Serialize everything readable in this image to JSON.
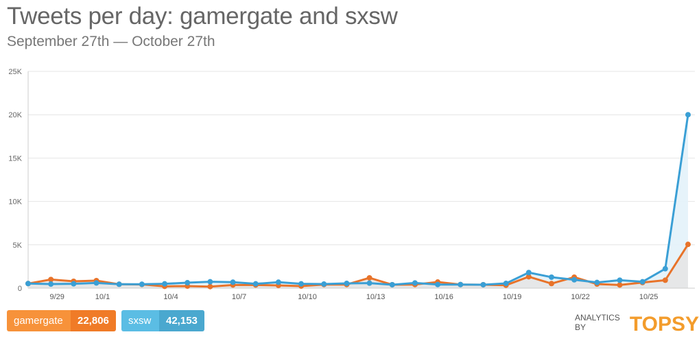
{
  "header": {
    "title": "Tweets per day: gamergate and sxsw",
    "subtitle": "September 27th — October 27th"
  },
  "chart_data": {
    "type": "line",
    "title": "Tweets per day: gamergate and sxsw",
    "subtitle": "September 27th — October 27th",
    "xlabel": "",
    "ylabel": "",
    "ylim": [
      0,
      25000
    ],
    "y_ticks": [
      "0",
      "5K",
      "10K",
      "15K",
      "20K",
      "25K"
    ],
    "y_tick_values": [
      0,
      5000,
      10000,
      15000,
      20000,
      25000
    ],
    "grid": true,
    "legend_placement": "bottom-left",
    "x": [
      "9/28",
      "9/29",
      "9/30",
      "10/1",
      "10/2",
      "10/3",
      "10/4",
      "10/5",
      "10/6",
      "10/7",
      "10/8",
      "10/9",
      "10/10",
      "10/11",
      "10/12",
      "10/13",
      "10/14",
      "10/15",
      "10/16",
      "10/17",
      "10/18",
      "10/19",
      "10/20",
      "10/21",
      "10/22",
      "10/23",
      "10/24",
      "10/25",
      "10/26",
      "10/27"
    ],
    "x_tick_labels": [
      "9/29",
      "10/1",
      "10/4",
      "10/7",
      "10/10",
      "10/13",
      "10/16",
      "10/19",
      "10/22",
      "10/25"
    ],
    "series": [
      {
        "name": "sxsw",
        "color": "#3a9fd5",
        "fill": "#e3f2fa",
        "values": [
          530,
          470,
          500,
          600,
          450,
          450,
          500,
          630,
          740,
          690,
          500,
          690,
          500,
          470,
          550,
          580,
          400,
          600,
          420,
          420,
          400,
          550,
          1800,
          1270,
          970,
          660,
          920,
          740,
          2240,
          20000
        ]
      },
      {
        "name": "gamergate",
        "color": "#e8732a",
        "fill": "#e6e6e6",
        "values": [
          530,
          1000,
          790,
          870,
          450,
          430,
          210,
          240,
          180,
          370,
          370,
          320,
          240,
          420,
          420,
          1190,
          400,
          420,
          710,
          420,
          400,
          340,
          1320,
          530,
          1270,
          470,
          370,
          650,
          920,
          5050
        ]
      }
    ]
  },
  "legend": [
    {
      "name": "gamergate",
      "total": "22,806",
      "color_light": "#f7923a",
      "color_dark": "#f07b27"
    },
    {
      "name": "sxsw",
      "total": "42,153",
      "color_light": "#5bbde4",
      "color_dark": "#4aa8cf"
    }
  ],
  "branding": {
    "prefix": "ANALYTICS BY",
    "logo": "TOPSY"
  }
}
